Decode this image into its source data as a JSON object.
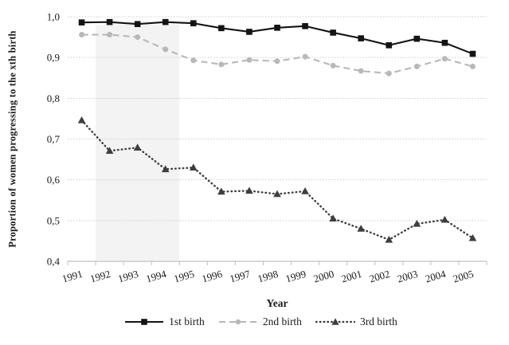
{
  "chart_data": {
    "type": "line",
    "title": "",
    "xlabel": "Year",
    "ylabel": "Proportion of women progressing to the xth birth",
    "x": [
      1991,
      1992,
      1993,
      1994,
      1995,
      1996,
      1997,
      1998,
      1999,
      2000,
      2001,
      2002,
      2003,
      2004,
      2005
    ],
    "x_tick_labels": [
      "1991",
      "1992",
      "1993",
      "1994",
      "1995",
      "1996",
      "1997",
      "1998",
      "1999",
      "2000",
      "2001",
      "2002",
      "2003",
      "2004",
      "2005"
    ],
    "y_ticks": [
      0.4,
      0.5,
      0.6,
      0.7,
      0.8,
      0.9,
      1.0
    ],
    "y_tick_labels": [
      "0,4",
      "0,5",
      "0,6",
      "0,7",
      "0,8",
      "0,9",
      "1,0"
    ],
    "ylim": [
      0.4,
      1.0
    ],
    "grid": "horizontal-dotted",
    "legend_position": "bottom",
    "shaded_region": {
      "x_start": 1992,
      "x_end": 1995,
      "color": "#f3f3f3"
    },
    "colors": {
      "grid": "#d0d0d0",
      "axis": "#bfbfbf",
      "text": "#1a1a1a",
      "background": "#ffffff"
    },
    "series": [
      {
        "name": "1st birth",
        "marker": "square",
        "line_style": "solid",
        "color": "#141414",
        "values": [
          0.986,
          0.987,
          0.982,
          0.987,
          0.984,
          0.972,
          0.963,
          0.973,
          0.977,
          0.961,
          0.947,
          0.93,
          0.946,
          0.936,
          0.909
        ]
      },
      {
        "name": "2nd birth",
        "marker": "circle",
        "line_style": "dashed",
        "color": "#b8b8b8",
        "values": [
          0.956,
          0.956,
          0.95,
          0.92,
          0.893,
          0.883,
          0.894,
          0.891,
          0.902,
          0.88,
          0.867,
          0.861,
          0.878,
          0.897,
          0.878
        ]
      },
      {
        "name": "3rd birth",
        "marker": "triangle",
        "line_style": "dotted",
        "color": "#3e3e3e",
        "values": [
          0.746,
          0.671,
          0.679,
          0.626,
          0.63,
          0.571,
          0.573,
          0.565,
          0.572,
          0.505,
          0.48,
          0.453,
          0.492,
          0.502,
          0.457
        ]
      }
    ]
  }
}
